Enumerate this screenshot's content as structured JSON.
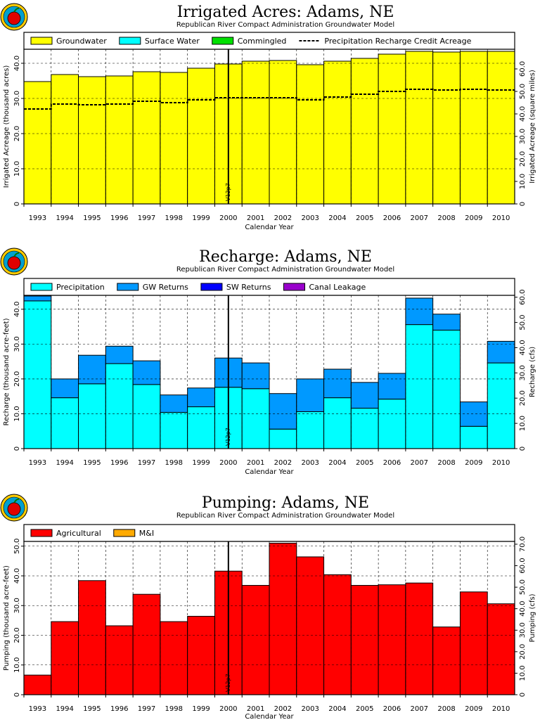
{
  "chart_data": [
    {
      "id": "irrigated",
      "type": "bar",
      "title": "Irrigated Acres: Adams, NE",
      "subtitle": "Republican River Compact Administration Groundwater Model",
      "xlabel": "Calendar Year",
      "ylabel": "Irrigated Acreage (thousand acres)",
      "y2label": "Irrigated Acreage (square miles)",
      "categories": [
        "1993",
        "1994",
        "1995",
        "1996",
        "1997",
        "1998",
        "1999",
        "2000",
        "2001",
        "2002",
        "2003",
        "2004",
        "2005",
        "2006",
        "2007",
        "2008",
        "2009",
        "2010"
      ],
      "series": [
        {
          "name": "Groundwater",
          "color": "#ffff00",
          "values": [
            34.8,
            36.8,
            36.2,
            36.4,
            37.6,
            37.4,
            38.6,
            39.8,
            40.6,
            40.8,
            39.6,
            40.6,
            41.4,
            42.6,
            43.4,
            43.2,
            43.4,
            43.4
          ]
        },
        {
          "name": "Surface Water",
          "color": "#00ffff",
          "values": [
            0,
            0,
            0,
            0,
            0,
            0,
            0,
            0,
            0,
            0,
            0,
            0,
            0,
            0,
            0,
            0,
            0,
            0
          ]
        },
        {
          "name": "Commingled",
          "color": "#00e000",
          "values": [
            0,
            0,
            0,
            0,
            0,
            0,
            0,
            0,
            0,
            0,
            0,
            0,
            0,
            0,
            0,
            0,
            0,
            0
          ]
        }
      ],
      "line_series": {
        "name": "Precipitation Recharge Credit Acreage",
        "style": "dashed",
        "values": [
          27.0,
          28.4,
          28.2,
          28.4,
          29.2,
          28.8,
          29.6,
          30.2,
          30.2,
          30.2,
          29.6,
          30.4,
          31.2,
          32.0,
          32.6,
          32.4,
          32.6,
          32.4
        ]
      },
      "ylim": [
        0,
        44
      ],
      "yticks": [
        0,
        10.0,
        20.0,
        30.0,
        40.0
      ],
      "y2lim": [
        0,
        68.75
      ],
      "y2ticks": [
        0,
        10.0,
        20.0,
        30.0,
        40.0,
        50.0,
        60.0
      ],
      "vline_label": "V12p7",
      "grid": true,
      "legend": "top"
    },
    {
      "id": "recharge",
      "type": "bar",
      "title": "Recharge: Adams, NE",
      "subtitle": "Republican River Compact Administration Groundwater Model",
      "xlabel": "Calendar Year",
      "ylabel": "Recharge (thousand acre-feet)",
      "y2label": "Recharge (cfs)",
      "categories": [
        "1993",
        "1994",
        "1995",
        "1996",
        "1997",
        "1998",
        "1999",
        "2000",
        "2001",
        "2002",
        "2003",
        "2004",
        "2005",
        "2006",
        "2007",
        "2008",
        "2009",
        "2010"
      ],
      "series": [
        {
          "name": "Precipitation",
          "color": "#00ffff",
          "values": [
            42.4,
            14.6,
            18.6,
            24.4,
            18.4,
            10.4,
            12.0,
            17.6,
            17.2,
            5.6,
            10.6,
            14.6,
            11.6,
            14.2,
            35.6,
            34.0,
            6.4,
            24.6
          ]
        },
        {
          "name": "GW Returns",
          "color": "#0099ff",
          "values": [
            1.4,
            5.4,
            8.2,
            5.0,
            6.8,
            5.0,
            5.4,
            8.4,
            7.4,
            10.2,
            9.4,
            8.2,
            7.4,
            7.4,
            7.6,
            4.6,
            7.0,
            6.2
          ]
        },
        {
          "name": "SW Returns",
          "color": "#0000ff",
          "values": [
            0,
            0,
            0,
            0,
            0,
            0,
            0,
            0,
            0,
            0,
            0,
            0,
            0,
            0,
            0,
            0,
            0,
            0
          ]
        },
        {
          "name": "Canal Leakage",
          "color": "#9900cc",
          "values": [
            0,
            0,
            0,
            0,
            0,
            0,
            0,
            0,
            0,
            0,
            0,
            0,
            0,
            0,
            0,
            0,
            0,
            0
          ]
        }
      ],
      "ylim": [
        0,
        44
      ],
      "yticks": [
        0,
        10.0,
        20.0,
        30.0,
        40.0
      ],
      "y2lim": [
        0,
        60.75
      ],
      "y2ticks": [
        0,
        10.0,
        20.0,
        30.0,
        40.0,
        50.0,
        60.0
      ],
      "vline_label": "V12p7",
      "grid": true,
      "legend": "top"
    },
    {
      "id": "pumping",
      "type": "bar",
      "title": "Pumping: Adams, NE",
      "subtitle": "Republican River Compact Administration Groundwater Model",
      "xlabel": "Calendar Year",
      "ylabel": "Pumping (thousand acre-feet)",
      "y2label": "Pumping (cfs)",
      "categories": [
        "1993",
        "1994",
        "1995",
        "1996",
        "1997",
        "1998",
        "1999",
        "2000",
        "2001",
        "2002",
        "2003",
        "2004",
        "2005",
        "2006",
        "2007",
        "2008",
        "2009",
        "2010"
      ],
      "series": [
        {
          "name": "Agricultural",
          "color": "#ff0000",
          "values": [
            6.6,
            24.6,
            38.4,
            23.2,
            33.8,
            24.6,
            26.4,
            41.6,
            36.8,
            51.0,
            46.4,
            40.4,
            36.8,
            37.0,
            37.6,
            22.8,
            34.6,
            30.6
          ]
        },
        {
          "name": "M&I",
          "color": "#ffaa00",
          "values": [
            0,
            0,
            0,
            0,
            0,
            0,
            0,
            0,
            0,
            0,
            0,
            0,
            0,
            0,
            0,
            0,
            0,
            0
          ]
        }
      ],
      "ylim": [
        0,
        51.6
      ],
      "yticks": [
        0,
        10.0,
        20.0,
        30.0,
        40.0,
        50.0
      ],
      "y2lim": [
        0,
        71.3
      ],
      "y2ticks": [
        0,
        10.0,
        20.0,
        30.0,
        40.0,
        50.0,
        60.0,
        70.0
      ],
      "vline_label": "V12p7",
      "grid": true,
      "legend": "top"
    }
  ]
}
